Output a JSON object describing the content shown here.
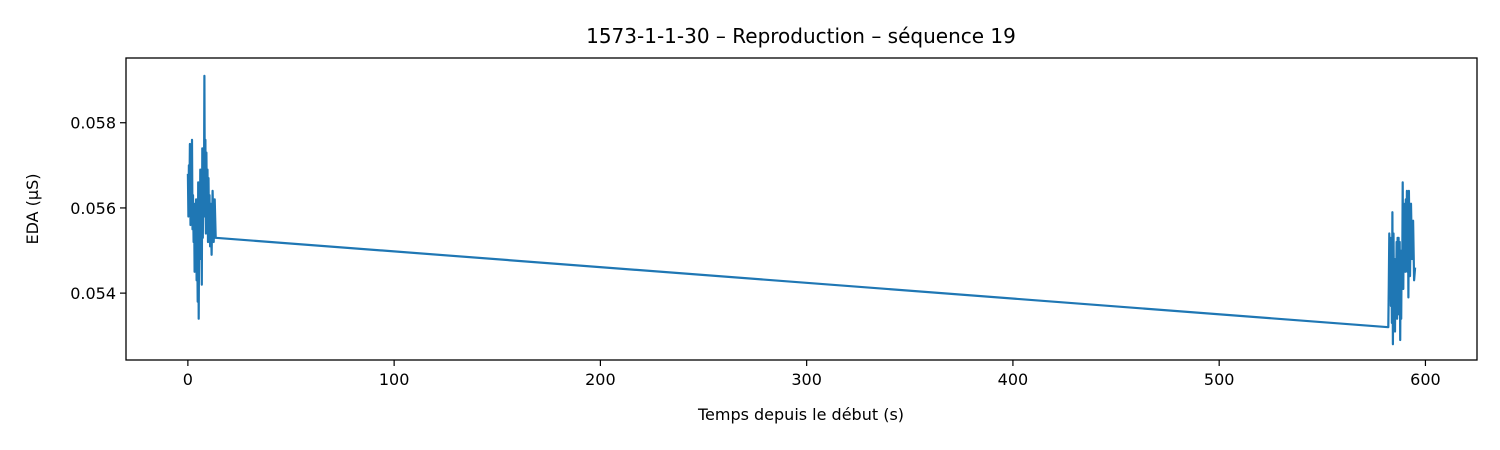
{
  "chart_data": {
    "type": "line",
    "title": "1573-1-1-30 – Reproduction – séquence 19",
    "xlabel": "Temps depuis le début (s)",
    "ylabel": "EDA (µS)",
    "xlim": [
      -30,
      625
    ],
    "ylim": [
      0.05243,
      0.05952
    ],
    "xticks": [
      0,
      100,
      200,
      300,
      400,
      500,
      600
    ],
    "yticks": [
      0.054,
      0.056,
      0.058
    ],
    "ytick_labels": [
      "0.054",
      "0.056",
      "0.058"
    ],
    "grid": false,
    "series": [
      {
        "color": "#1f77b4",
        "x": [
          0.0,
          0.25,
          0.5,
          0.75,
          1.0,
          1.25,
          1.5,
          1.75,
          2.0,
          2.25,
          2.5,
          2.75,
          3.0,
          3.25,
          3.5,
          3.75,
          4.0,
          4.25,
          4.5,
          4.75,
          5.0,
          5.25,
          5.5,
          5.75,
          6.0,
          6.25,
          6.5,
          6.75,
          7.0,
          7.25,
          7.5,
          7.75,
          8.0,
          8.25,
          8.5,
          8.75,
          9.0,
          9.25,
          9.5,
          9.75,
          10.0,
          10.25,
          10.5,
          10.75,
          11.0,
          11.5,
          12.0,
          12.5,
          13.0,
          13.5,
          582.0,
          582.25,
          582.5,
          582.75,
          583.0,
          583.25,
          583.5,
          583.75,
          584.0,
          584.25,
          584.5,
          584.75,
          585.0,
          585.25,
          585.5,
          585.75,
          586.0,
          586.25,
          586.5,
          586.75,
          587.0,
          587.25,
          587.5,
          587.75,
          588.0,
          588.25,
          588.5,
          588.75,
          589.0,
          589.25,
          589.5,
          589.75,
          590.0,
          590.25,
          590.5,
          590.75,
          591.0,
          591.25,
          591.5,
          591.75,
          592.0,
          592.5,
          593.0,
          593.5,
          594.0,
          594.5,
          595.0
        ],
        "y": [
          0.0568,
          0.0558,
          0.057,
          0.0562,
          0.0575,
          0.0556,
          0.0565,
          0.0559,
          0.0576,
          0.0555,
          0.0563,
          0.0552,
          0.0561,
          0.0545,
          0.0559,
          0.0549,
          0.0562,
          0.0543,
          0.0553,
          0.0538,
          0.0566,
          0.0534,
          0.0557,
          0.0549,
          0.0569,
          0.0548,
          0.056,
          0.0542,
          0.0574,
          0.0553,
          0.0564,
          0.0559,
          0.0591,
          0.0558,
          0.0576,
          0.0554,
          0.0573,
          0.0556,
          0.0569,
          0.0552,
          0.0567,
          0.0555,
          0.0563,
          0.0551,
          0.0561,
          0.0549,
          0.0564,
          0.0552,
          0.0562,
          0.0553,
          0.0532,
          0.0542,
          0.0554,
          0.0546,
          0.0553,
          0.0537,
          0.0552,
          0.0533,
          0.0559,
          0.0528,
          0.0554,
          0.0538,
          0.0548,
          0.0531,
          0.0547,
          0.0537,
          0.0552,
          0.0534,
          0.0553,
          0.0545,
          0.0553,
          0.0535,
          0.0552,
          0.0529,
          0.0549,
          0.0534,
          0.055,
          0.0543,
          0.0566,
          0.0541,
          0.0561,
          0.0545,
          0.0556,
          0.0545,
          0.0562,
          0.0547,
          0.0564,
          0.0545,
          0.0561,
          0.0539,
          0.0564,
          0.0544,
          0.0561,
          0.0548,
          0.0557,
          0.0543,
          0.0546
        ]
      }
    ]
  }
}
